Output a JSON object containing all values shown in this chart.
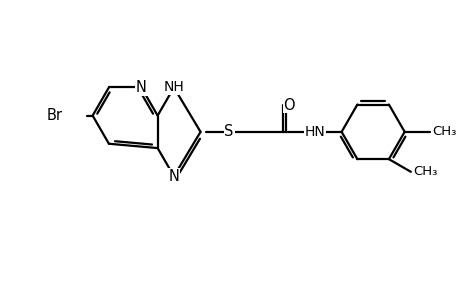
{
  "bg_color": "#ffffff",
  "line_color": "#000000",
  "bond_lw": 1.6,
  "font_size": 10.5,
  "fig_width": 4.6,
  "fig_height": 3.0,
  "dpi": 100,
  "bl": 34,
  "j1": [
    162,
    186
  ],
  "j2": [
    162,
    152
  ]
}
